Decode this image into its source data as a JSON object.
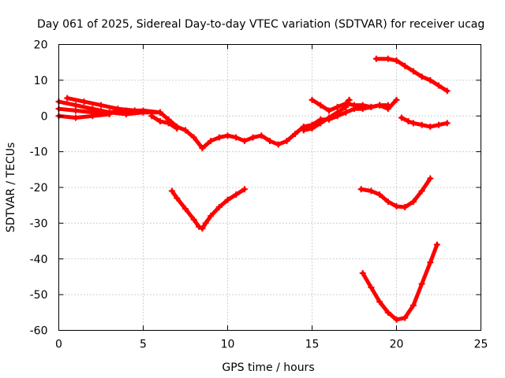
{
  "chart_data": {
    "type": "scatter",
    "title": "Day 061 of 2025, Sidereal Day-to-day VTEC variation (SDTVAR) for receiver ucag",
    "xlabel": "GPS time / hours",
    "ylabel": "SDTVAR / TECUs",
    "xlim": [
      0,
      25
    ],
    "ylim": [
      -60,
      20
    ],
    "xticks": [
      0,
      5,
      10,
      15,
      20,
      25
    ],
    "yticks": [
      -60,
      -50,
      -40,
      -30,
      -20,
      -10,
      0,
      10,
      20
    ],
    "grid": true,
    "legend": "none",
    "color": "#ff0000",
    "series": [
      {
        "points": [
          [
            0,
            2
          ],
          [
            1,
            1.5
          ],
          [
            2,
            1
          ],
          [
            3,
            1
          ],
          [
            4,
            1.5
          ],
          [
            5,
            1.5
          ],
          [
            6,
            1
          ],
          [
            6.5,
            -1
          ],
          [
            7,
            -3
          ],
          [
            7.5,
            -4
          ],
          [
            8,
            -6
          ],
          [
            8.5,
            -9
          ],
          [
            9,
            -7
          ],
          [
            9.5,
            -6
          ],
          [
            10,
            -5.5
          ],
          [
            10.5,
            -6
          ],
          [
            11,
            -7
          ],
          [
            11.5,
            -6
          ],
          [
            12,
            -5.5
          ],
          [
            12.5,
            -7
          ],
          [
            13,
            -8
          ],
          [
            13.5,
            -7
          ],
          [
            14,
            -5
          ],
          [
            14.5,
            -3
          ],
          [
            15,
            -2.5
          ],
          [
            15.5,
            -1
          ],
          [
            16,
            -1
          ],
          [
            16.5,
            0
          ],
          [
            17,
            1
          ],
          [
            17.5,
            2
          ],
          [
            18,
            2
          ],
          [
            18.5,
            2.5
          ],
          [
            19,
            3
          ],
          [
            19.5,
            3
          ]
        ]
      },
      {
        "points": [
          [
            0,
            4
          ],
          [
            1,
            3
          ],
          [
            2,
            2
          ],
          [
            3,
            1
          ],
          [
            4,
            0.5
          ],
          [
            5,
            1
          ],
          [
            6,
            1
          ]
        ]
      },
      {
        "points": [
          [
            0.5,
            5
          ],
          [
            1.5,
            4
          ],
          [
            2.5,
            3
          ],
          [
            3.5,
            2
          ],
          [
            4.5,
            1.5
          ]
        ]
      },
      {
        "points": [
          [
            0,
            0
          ],
          [
            1,
            -0.5
          ],
          [
            2,
            0
          ],
          [
            3,
            0.5
          ]
        ]
      },
      {
        "points": [
          [
            5.5,
            0
          ],
          [
            6,
            -1.5
          ],
          [
            6.5,
            -2
          ],
          [
            7,
            -3.5
          ]
        ]
      },
      {
        "points": [
          [
            15,
            4.5
          ],
          [
            15.5,
            3
          ],
          [
            16,
            1.5
          ],
          [
            16.5,
            2.5
          ],
          [
            17,
            3.5
          ],
          [
            17.5,
            3
          ],
          [
            18,
            3
          ],
          [
            18.5,
            2.5
          ],
          [
            19,
            3
          ],
          [
            19.5,
            2
          ],
          [
            20,
            4.5
          ]
        ]
      },
      {
        "points": [
          [
            14.5,
            -4
          ],
          [
            15,
            -3.5
          ],
          [
            15.5,
            -2
          ],
          [
            16,
            -0.5
          ],
          [
            16.5,
            1
          ],
          [
            17,
            2.5
          ],
          [
            17.2,
            4.5
          ]
        ]
      },
      {
        "points": [
          [
            18.8,
            16
          ],
          [
            19.5,
            16
          ],
          [
            20,
            15.5
          ],
          [
            20.5,
            14
          ],
          [
            21,
            12.5
          ],
          [
            21.5,
            11
          ],
          [
            22,
            10
          ],
          [
            22.5,
            8.5
          ],
          [
            23,
            7
          ]
        ]
      },
      {
        "points": [
          [
            20.3,
            -0.5
          ],
          [
            20.7,
            -1.5
          ],
          [
            21,
            -2
          ],
          [
            21.5,
            -2.5
          ],
          [
            22,
            -3
          ],
          [
            22.5,
            -2.5
          ],
          [
            23,
            -2
          ]
        ]
      },
      {
        "points": [
          [
            6.7,
            -21
          ],
          [
            7,
            -23
          ],
          [
            7.5,
            -26
          ],
          [
            8,
            -29
          ],
          [
            8.3,
            -31
          ],
          [
            8.5,
            -31.5
          ],
          [
            8.7,
            -30
          ],
          [
            9,
            -28
          ],
          [
            9.5,
            -25.5
          ],
          [
            10,
            -23.5
          ],
          [
            10.5,
            -22
          ],
          [
            11,
            -20.5
          ]
        ]
      },
      {
        "points": [
          [
            17.9,
            -20.5
          ],
          [
            18.5,
            -21
          ],
          [
            19,
            -22
          ],
          [
            19.5,
            -24
          ],
          [
            20,
            -25.3
          ],
          [
            20.5,
            -25.5
          ],
          [
            21,
            -24
          ],
          [
            21.5,
            -21
          ],
          [
            22,
            -17.5
          ]
        ]
      },
      {
        "points": [
          [
            18,
            -44
          ],
          [
            18.5,
            -48
          ],
          [
            19,
            -52
          ],
          [
            19.5,
            -55
          ],
          [
            20,
            -57
          ],
          [
            20.5,
            -56.5
          ],
          [
            21,
            -53
          ],
          [
            21.5,
            -47
          ],
          [
            22,
            -41
          ],
          [
            22.4,
            -36
          ]
        ]
      }
    ]
  }
}
